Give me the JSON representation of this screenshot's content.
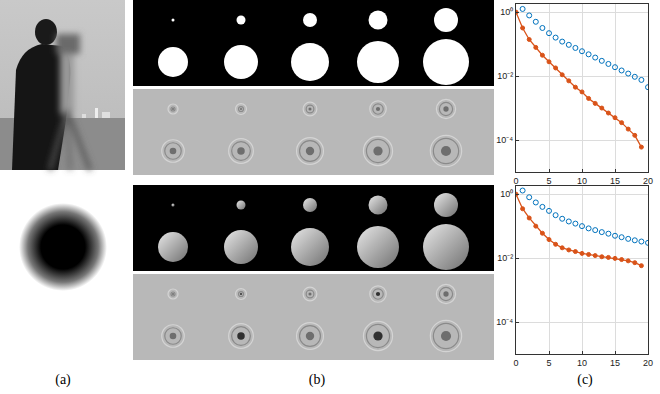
{
  "captions": [
    "(a)",
    "(b)",
    "(c)"
  ],
  "chart_data": [
    {
      "type": "line",
      "log": "y",
      "grid": true,
      "xlim": [
        0,
        20
      ],
      "xticks": [
        0,
        5,
        10,
        15,
        20
      ],
      "ylim": [
        1e-05,
        1.8
      ],
      "yticks": [
        {
          "value": 1,
          "label": "10⁰"
        },
        {
          "value": 0.01,
          "label": "10⁻²"
        },
        {
          "value": 0.0001,
          "label": "10⁻⁴"
        }
      ],
      "series": [
        {
          "color": "#0072bd",
          "marker": "circle-open",
          "line_style": "none",
          "x": [
            1,
            2,
            3,
            4,
            5,
            6,
            7,
            8,
            9,
            10,
            11,
            12,
            13,
            14,
            15,
            16,
            17,
            18,
            19,
            20
          ],
          "values": [
            1.26,
            0.79,
            0.5,
            0.32,
            0.22,
            0.16,
            0.12,
            0.095,
            0.076,
            0.06,
            0.048,
            0.038,
            0.03,
            0.024,
            0.019,
            0.015,
            0.012,
            0.0095,
            0.0076,
            0.0045
          ]
        },
        {
          "color": "#d95319",
          "marker": "circle",
          "line_style": "solid",
          "x": [
            0,
            1,
            2,
            3,
            4,
            5,
            6,
            7,
            8,
            9,
            10,
            11,
            12,
            13,
            14,
            15,
            16,
            17,
            18,
            19
          ],
          "values": [
            1,
            0.32,
            0.14,
            0.079,
            0.045,
            0.028,
            0.018,
            0.011,
            0.0071,
            0.0045,
            0.0032,
            0.002,
            0.0014,
            0.001,
            0.0007,
            0.0005,
            0.00035,
            0.00022,
            0.00014,
            6e-05
          ]
        }
      ]
    },
    {
      "type": "line",
      "log": "y",
      "grid": true,
      "xlim": [
        0,
        20
      ],
      "xticks": [
        0,
        5,
        10,
        15,
        20
      ],
      "ylim": [
        1e-05,
        1.8
      ],
      "yticks": [
        {
          "value": 1,
          "label": "10⁰"
        },
        {
          "value": 0.01,
          "label": "10⁻²"
        },
        {
          "value": 0.0001,
          "label": "10⁻⁴"
        }
      ],
      "series": [
        {
          "color": "#0072bd",
          "marker": "circle-open",
          "line_style": "none",
          "x": [
            1,
            2,
            3,
            4,
            5,
            6,
            7,
            8,
            9,
            10,
            11,
            12,
            13,
            14,
            15,
            16,
            17,
            18,
            19,
            20
          ],
          "values": [
            1.3,
            0.8,
            0.55,
            0.4,
            0.3,
            0.22,
            0.17,
            0.14,
            0.12,
            0.1,
            0.085,
            0.075,
            0.065,
            0.058,
            0.05,
            0.045,
            0.04,
            0.036,
            0.033,
            0.03
          ]
        },
        {
          "color": "#d95319",
          "marker": "circle",
          "line_style": "solid",
          "x": [
            0,
            1,
            2,
            3,
            4,
            5,
            6,
            7,
            8,
            9,
            10,
            11,
            12,
            13,
            14,
            15,
            16,
            17,
            18,
            19
          ],
          "values": [
            1,
            0.35,
            0.18,
            0.1,
            0.06,
            0.038,
            0.027,
            0.021,
            0.018,
            0.016,
            0.014,
            0.013,
            0.012,
            0.011,
            0.0105,
            0.0098,
            0.009,
            0.0082,
            0.0072,
            0.0058
          ]
        }
      ]
    }
  ]
}
